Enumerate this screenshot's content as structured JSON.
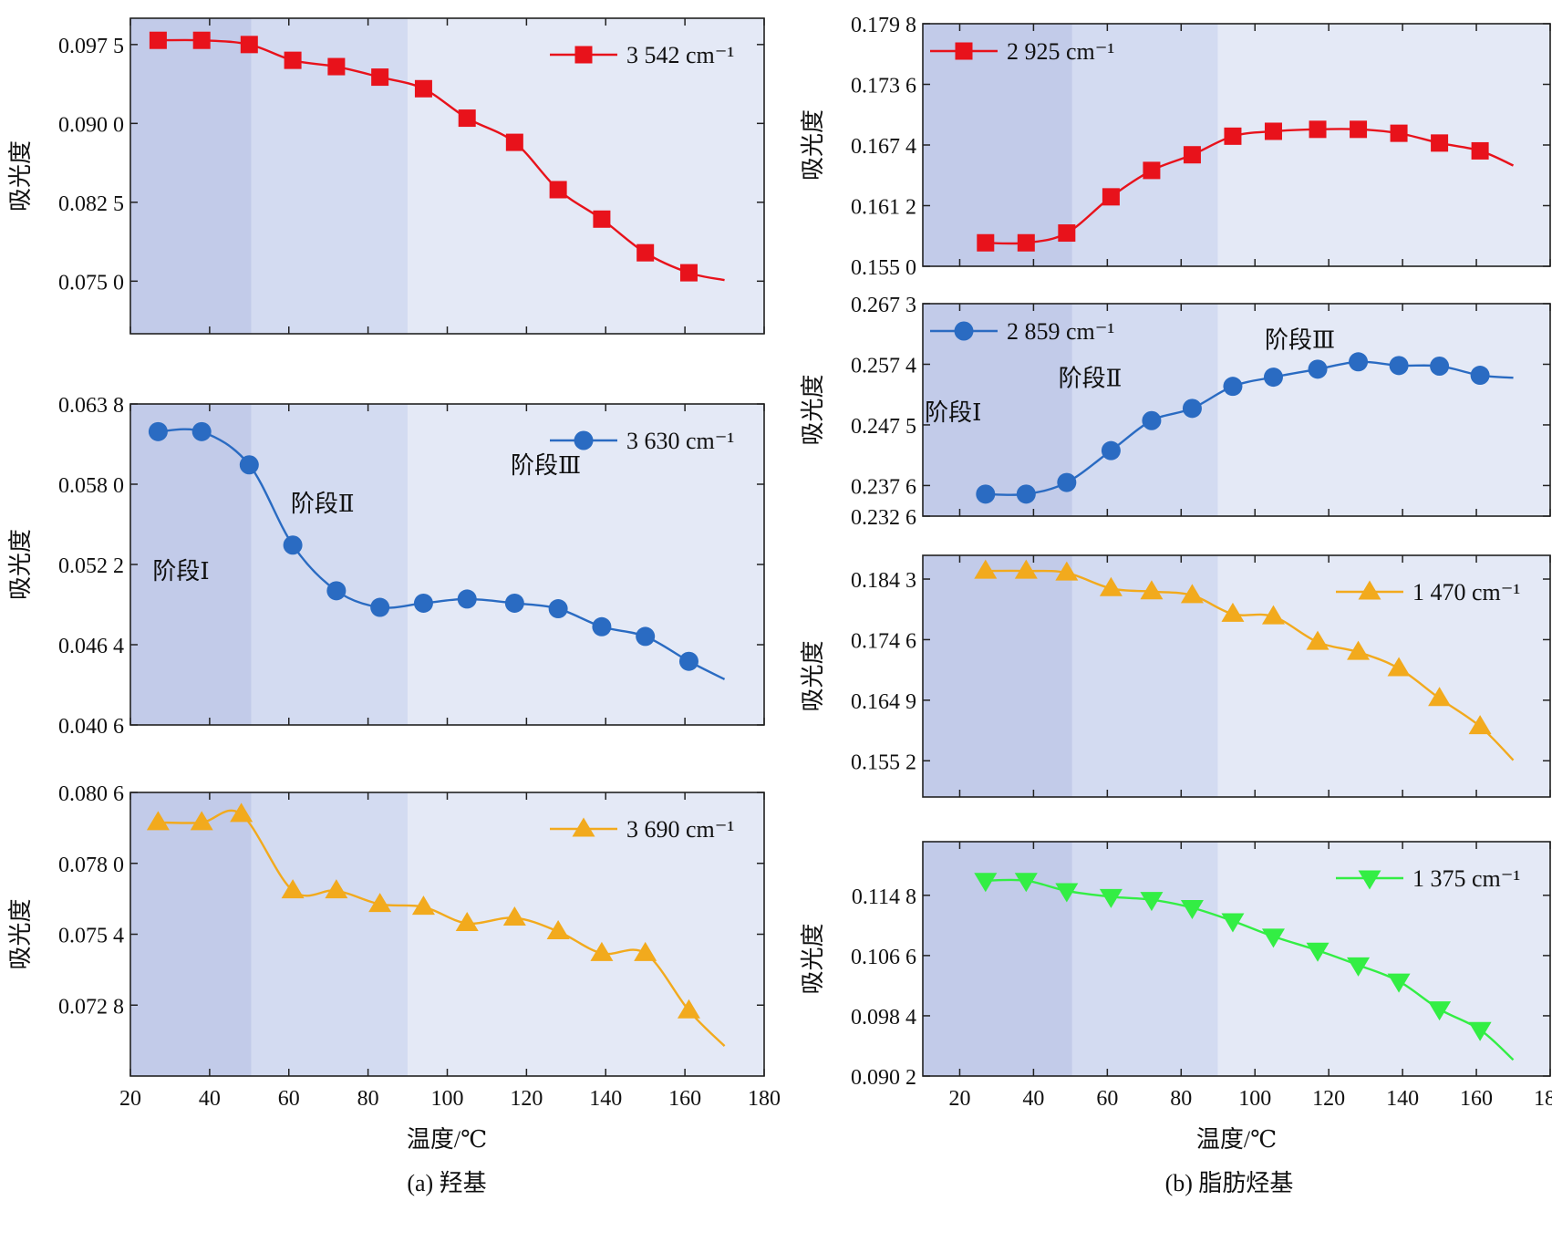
{
  "captions": {
    "a": "(a) 羟基",
    "b": "(b) 脂肪烃基"
  },
  "x_axis_label": "温度/℃",
  "y_axis_label": "吸光度",
  "stage_labels": [
    "阶段Ⅰ",
    "阶段Ⅱ",
    "阶段Ⅲ"
  ],
  "stage_bounds": [
    50.5,
    90
  ],
  "colors": {
    "red": "#e8121b",
    "blue": "#2a6bc2",
    "orange": "#f2aa1d",
    "green": "#33ee44",
    "stage1": "#c2cbe9",
    "stage2": "#d3dbf1",
    "stage3": "#e4e9f6"
  },
  "chart_data": [
    {
      "id": "a1",
      "type": "line",
      "xlim": [
        20,
        180
      ],
      "ylim": [
        0.07,
        0.1
      ],
      "yticks": [
        0.075,
        0.0825,
        0.09,
        0.0975
      ],
      "ytick_labels": [
        "0.075 0",
        "0.082 5",
        "0.090 0",
        "0.097 5"
      ],
      "xticks": [
        20,
        40,
        60,
        80,
        100,
        120,
        140,
        160,
        180
      ],
      "xtick_labels": [
        "20",
        "40",
        "60",
        "80",
        "100",
        "120",
        "140",
        "160",
        "180"
      ],
      "show_xtick_labels": false,
      "series": [
        {
          "name": "3 542 cm⁻¹",
          "color": "red",
          "marker": "square",
          "x": [
            27,
            38,
            50,
            61,
            72,
            83,
            94,
            105,
            117,
            128,
            139,
            150,
            161,
            170
          ],
          "y": [
            0.0979,
            0.0979,
            0.0975,
            0.096,
            0.0954,
            0.0944,
            0.0933,
            0.0905,
            0.0882,
            0.0837,
            0.0809,
            0.0777,
            0.0758,
            0.0751
          ],
          "markers_upto": 13
        }
      ],
      "legend": {
        "placement": "top-right"
      },
      "stage_text": false
    },
    {
      "id": "a2",
      "type": "line",
      "xlim": [
        20,
        180
      ],
      "ylim": [
        0.0406,
        0.0638
      ],
      "yticks": [
        0.0406,
        0.0464,
        0.0522,
        0.058,
        0.0638
      ],
      "ytick_labels": [
        "0.040 6",
        "0.046 4",
        "0.052 2",
        "0.058 0",
        "0.063 8"
      ],
      "xticks": [
        20,
        40,
        60,
        80,
        100,
        120,
        140,
        160,
        180
      ],
      "xtick_labels": [
        "20",
        "40",
        "60",
        "80",
        "100",
        "120",
        "140",
        "160",
        "180"
      ],
      "show_xtick_labels": false,
      "series": [
        {
          "name": "3 630 cm⁻¹",
          "color": "blue",
          "marker": "circle",
          "x": [
            27,
            38,
            50,
            61,
            72,
            83,
            94,
            105,
            117,
            128,
            139,
            150,
            161,
            170
          ],
          "y": [
            0.0618,
            0.0618,
            0.0594,
            0.0536,
            0.0503,
            0.0491,
            0.0494,
            0.0497,
            0.0494,
            0.049,
            0.0477,
            0.047,
            0.0452,
            0.0439
          ],
          "markers_upto": 13
        }
      ],
      "legend": {
        "placement": "top-right"
      },
      "stage_text": true
    },
    {
      "id": "a3",
      "type": "line",
      "xlim": [
        20,
        180
      ],
      "ylim": [
        0.0702,
        0.0806
      ],
      "yticks": [
        0.0728,
        0.0754,
        0.078,
        0.0806
      ],
      "ytick_labels": [
        "0.072 8",
        "0.075 4",
        "0.078 0",
        "0.080 6"
      ],
      "xticks": [
        20,
        40,
        60,
        80,
        100,
        120,
        140,
        160,
        180
      ],
      "xtick_labels": [
        "20",
        "40",
        "60",
        "80",
        "100",
        "120",
        "140",
        "160",
        "180"
      ],
      "show_xtick_labels": true,
      "series": [
        {
          "name": "3 690 cm⁻¹",
          "color": "orange",
          "marker": "triangle-up",
          "x": [
            27,
            38,
            48,
            61,
            72,
            83,
            94,
            105,
            117,
            128,
            139,
            150,
            161,
            170
          ],
          "y": [
            0.0795,
            0.0795,
            0.0798,
            0.077,
            0.077,
            0.0765,
            0.0764,
            0.0758,
            0.076,
            0.0755,
            0.0747,
            0.0747,
            0.0726,
            0.0713
          ],
          "markers_upto": 13
        }
      ],
      "legend": {
        "placement": "top-right"
      },
      "stage_text": false
    },
    {
      "id": "b1",
      "type": "line",
      "xlim": [
        10,
        180
      ],
      "ylim": [
        0.155,
        0.1798
      ],
      "yticks": [
        0.155,
        0.1612,
        0.1674,
        0.1736,
        0.1798
      ],
      "ytick_labels": [
        "0.155 0",
        "0.161 2",
        "0.167 4",
        "0.173 6",
        "0.179 8"
      ],
      "xticks": [
        20,
        40,
        60,
        80,
        100,
        120,
        140,
        160,
        180
      ],
      "xtick_labels": [
        "20",
        "40",
        "60",
        "80",
        "100",
        "120",
        "140",
        "160",
        "180"
      ],
      "show_xtick_labels": false,
      "series": [
        {
          "name": "2 925 cm⁻¹",
          "color": "red",
          "marker": "square",
          "x": [
            27,
            38,
            49,
            61,
            72,
            83,
            94,
            105,
            117,
            128,
            139,
            150,
            161,
            170
          ],
          "y": [
            0.1574,
            0.1574,
            0.1584,
            0.1621,
            0.1648,
            0.1664,
            0.1683,
            0.1688,
            0.169,
            0.169,
            0.1686,
            0.1676,
            0.1668,
            0.1653
          ],
          "markers_upto": 13
        }
      ],
      "legend": {
        "placement": "top-left"
      },
      "stage_text": false
    },
    {
      "id": "b2",
      "type": "line",
      "xlim": [
        10,
        180
      ],
      "ylim": [
        0.2326,
        0.2673
      ],
      "yticks": [
        0.2326,
        0.2376,
        0.2475,
        0.2574,
        0.2673
      ],
      "ytick_labels": [
        "0.232 6",
        "0.237 6",
        "0.247 5",
        "0.257 4",
        "0.267 3"
      ],
      "xticks": [
        20,
        40,
        60,
        80,
        100,
        120,
        140,
        160,
        180
      ],
      "xtick_labels": [
        "20",
        "40",
        "60",
        "80",
        "100",
        "120",
        "140",
        "160",
        "180"
      ],
      "show_xtick_labels": false,
      "series": [
        {
          "name": "2 859 cm⁻¹",
          "color": "blue",
          "marker": "circle",
          "x": [
            27,
            38,
            49,
            61,
            72,
            83,
            94,
            105,
            117,
            128,
            139,
            150,
            161,
            170
          ],
          "y": [
            0.2362,
            0.2362,
            0.2381,
            0.2433,
            0.2482,
            0.2502,
            0.2538,
            0.2553,
            0.2566,
            0.2578,
            0.2572,
            0.2571,
            0.2556,
            0.2552
          ],
          "markers_upto": 13
        }
      ],
      "legend": {
        "placement": "top-left"
      },
      "stage_text": true
    },
    {
      "id": "b3",
      "type": "line",
      "xlim": [
        10,
        180
      ],
      "ylim": [
        0.1494,
        0.1881
      ],
      "yticks": [
        0.1552,
        0.1649,
        0.1746,
        0.1843
      ],
      "ytick_labels": [
        "0.155 2",
        "0.164 9",
        "0.174 6",
        "0.184 3"
      ],
      "xticks": [
        20,
        40,
        60,
        80,
        100,
        120,
        140,
        160,
        180
      ],
      "xtick_labels": [
        "20",
        "40",
        "60",
        "80",
        "100",
        "120",
        "140",
        "160",
        "180"
      ],
      "show_xtick_labels": false,
      "series": [
        {
          "name": "1 470 cm⁻¹",
          "color": "orange",
          "marker": "triangle-up",
          "x": [
            27,
            38,
            49,
            61,
            72,
            83,
            94,
            105,
            117,
            128,
            139,
            150,
            161,
            170
          ],
          "y": [
            0.1856,
            0.1856,
            0.1853,
            0.1828,
            0.1823,
            0.1817,
            0.1787,
            0.1783,
            0.1742,
            0.1726,
            0.17,
            0.1652,
            0.1607,
            0.1553
          ],
          "markers_upto": 13
        }
      ],
      "legend": {
        "placement": "top-right"
      },
      "stage_text": false
    },
    {
      "id": "b4",
      "type": "line",
      "xlim": [
        10,
        180
      ],
      "ylim": [
        0.0902,
        0.1221
      ],
      "yticks": [
        0.0902,
        0.0984,
        0.1066,
        0.1148
      ],
      "ytick_labels": [
        "0.090 2",
        "0.098 4",
        "0.106 6",
        "0.114 8"
      ],
      "xticks": [
        20,
        40,
        60,
        80,
        100,
        120,
        140,
        160,
        180
      ],
      "xtick_labels": [
        "20",
        "40",
        "60",
        "80",
        "100",
        "120",
        "140",
        "160",
        "180"
      ],
      "show_xtick_labels": true,
      "series": [
        {
          "name": "1 375 cm⁻¹",
          "color": "green",
          "marker": "triangle-down",
          "x": [
            27,
            38,
            49,
            61,
            72,
            83,
            94,
            105,
            117,
            128,
            139,
            150,
            161,
            170
          ],
          "y": [
            0.1168,
            0.1168,
            0.1154,
            0.1146,
            0.1142,
            0.1131,
            0.1113,
            0.1092,
            0.1073,
            0.1053,
            0.1031,
            0.0993,
            0.0965,
            0.0924
          ],
          "markers_upto": 13
        }
      ],
      "legend": {
        "placement": "top-right"
      },
      "stage_text": false
    }
  ]
}
